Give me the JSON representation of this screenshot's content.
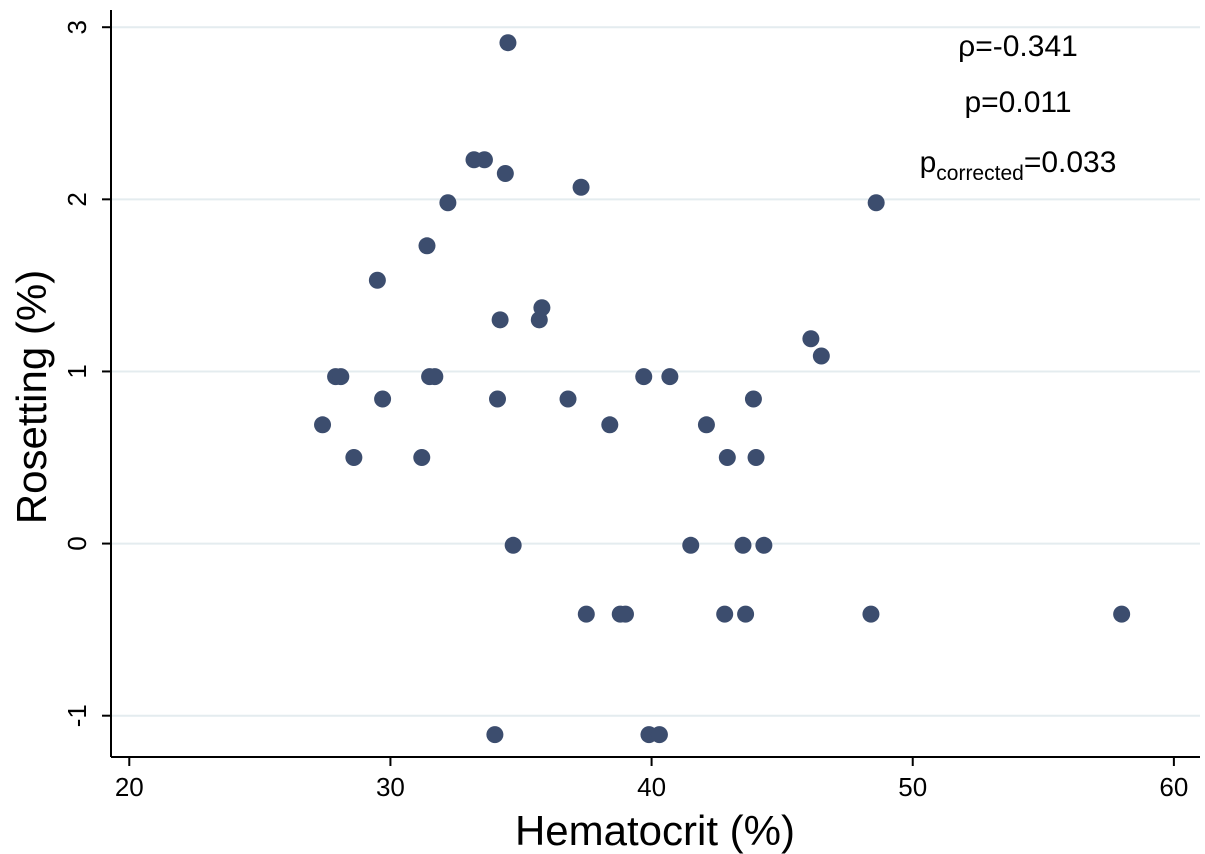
{
  "chart_data": {
    "type": "scatter",
    "xlabel": "Hematocrit (%)",
    "ylabel": "Rosetting (%)",
    "xlim": [
      19.3,
      61.0
    ],
    "ylim": [
      -1.24,
      3.1
    ],
    "x_ticks": [
      20,
      30,
      40,
      50,
      60
    ],
    "y_ticks": [
      -1,
      0,
      1,
      2,
      3
    ],
    "grid": "horizontal",
    "marker_color": "#3c4d6e",
    "grid_color": "#e4ecef",
    "annotations": {
      "rho": "ρ=-0.341",
      "p": "p=0.011",
      "p_corrected_base": "p",
      "p_corrected_sub": "corrected",
      "p_corrected_value": "=0.033"
    },
    "points": [
      {
        "x": 27.4,
        "y": 0.69
      },
      {
        "x": 27.9,
        "y": 0.97
      },
      {
        "x": 28.1,
        "y": 0.97
      },
      {
        "x": 28.6,
        "y": 0.5
      },
      {
        "x": 29.5,
        "y": 1.53
      },
      {
        "x": 29.7,
        "y": 0.84
      },
      {
        "x": 31.2,
        "y": 0.5
      },
      {
        "x": 31.4,
        "y": 1.73
      },
      {
        "x": 31.5,
        "y": 0.97
      },
      {
        "x": 31.7,
        "y": 0.97
      },
      {
        "x": 32.2,
        "y": 1.98
      },
      {
        "x": 33.2,
        "y": 2.23
      },
      {
        "x": 33.6,
        "y": 2.23
      },
      {
        "x": 34.0,
        "y": -1.11
      },
      {
        "x": 34.1,
        "y": 0.84
      },
      {
        "x": 34.2,
        "y": 1.3
      },
      {
        "x": 34.4,
        "y": 2.15
      },
      {
        "x": 34.5,
        "y": 2.91
      },
      {
        "x": 34.7,
        "y": -0.01
      },
      {
        "x": 35.7,
        "y": 1.3
      },
      {
        "x": 35.8,
        "y": 1.37
      },
      {
        "x": 36.8,
        "y": 0.84
      },
      {
        "x": 37.3,
        "y": 2.07
      },
      {
        "x": 37.5,
        "y": -0.41
      },
      {
        "x": 38.4,
        "y": 0.69
      },
      {
        "x": 38.8,
        "y": -0.41
      },
      {
        "x": 39.0,
        "y": -0.41
      },
      {
        "x": 39.7,
        "y": 0.97
      },
      {
        "x": 39.9,
        "y": -1.11
      },
      {
        "x": 40.3,
        "y": -1.11
      },
      {
        "x": 40.7,
        "y": 0.97
      },
      {
        "x": 41.5,
        "y": -0.01
      },
      {
        "x": 42.1,
        "y": 0.69
      },
      {
        "x": 42.8,
        "y": -0.41
      },
      {
        "x": 42.9,
        "y": 0.5
      },
      {
        "x": 43.5,
        "y": -0.01
      },
      {
        "x": 43.6,
        "y": -0.41
      },
      {
        "x": 43.9,
        "y": 0.84
      },
      {
        "x": 44.0,
        "y": 0.5
      },
      {
        "x": 44.3,
        "y": -0.01
      },
      {
        "x": 46.1,
        "y": 1.19
      },
      {
        "x": 46.5,
        "y": 1.09
      },
      {
        "x": 48.4,
        "y": -0.41
      },
      {
        "x": 48.6,
        "y": 1.98
      },
      {
        "x": 58.0,
        "y": -0.41
      }
    ]
  }
}
